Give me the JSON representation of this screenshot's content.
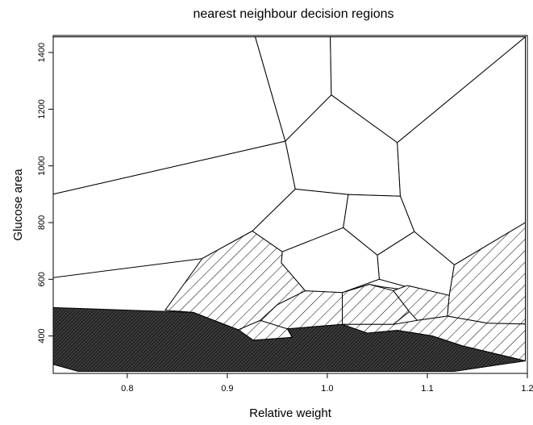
{
  "chart_data": {
    "type": "scatter",
    "title": "nearest neighbour decision regions",
    "xlabel": "Relative weight",
    "ylabel": "Glucose area",
    "xlim": [
      0.726,
      1.2
    ],
    "ylim": [
      268,
      1460
    ],
    "x_ticks": [
      0.8,
      0.9,
      1.0,
      1.1,
      1.2
    ],
    "x_tick_labels": [
      "0.8",
      "0.9",
      "1.0",
      "1.1",
      "1.2"
    ],
    "y_ticks": [
      400,
      600,
      800,
      1000,
      1200,
      1400
    ],
    "y_tick_labels": [
      "400",
      "600",
      "800",
      "1000",
      "1200",
      "1400"
    ],
    "grid": false,
    "legend": "none",
    "classes": [
      {
        "id": "overt",
        "fill": "white"
      },
      {
        "id": "chemical",
        "fill": "hatch"
      },
      {
        "id": "normal",
        "fill": "dark"
      }
    ],
    "region_fill_colors": {
      "white": "#ffffff",
      "hatch_line": "#000000",
      "dark": "#3a3a3a"
    },
    "regions": [
      {
        "class": "overt",
        "points": [
          [
            0.726,
            1455
          ],
          [
            0.928,
            1455
          ],
          [
            0.958,
            1087
          ],
          [
            0.726,
            900
          ]
        ]
      },
      {
        "class": "overt",
        "points": [
          [
            0.928,
            1455
          ],
          [
            1.003,
            1455
          ],
          [
            1.004,
            1250
          ],
          [
            0.958,
            1087
          ]
        ]
      },
      {
        "class": "overt",
        "points": [
          [
            1.003,
            1455
          ],
          [
            1.198,
            1455
          ],
          [
            1.07,
            1082
          ],
          [
            1.004,
            1250
          ]
        ]
      },
      {
        "class": "overt",
        "points": [
          [
            0.958,
            1087
          ],
          [
            1.004,
            1250
          ],
          [
            1.07,
            1082
          ],
          [
            1.073,
            893
          ],
          [
            1.021,
            899
          ],
          [
            0.968,
            918
          ]
        ]
      },
      {
        "class": "overt",
        "points": [
          [
            0.726,
            900
          ],
          [
            0.958,
            1087
          ],
          [
            0.968,
            918
          ],
          [
            0.925,
            770
          ],
          [
            0.875,
            673
          ],
          [
            0.726,
            606
          ]
        ]
      },
      {
        "class": "overt",
        "points": [
          [
            1.07,
            1082
          ],
          [
            1.198,
            1455
          ],
          [
            1.198,
            800
          ],
          [
            1.127,
            651
          ],
          [
            1.087,
            768
          ],
          [
            1.073,
            893
          ]
        ]
      },
      {
        "class": "overt",
        "points": [
          [
            0.968,
            918
          ],
          [
            1.021,
            899
          ],
          [
            1.016,
            782
          ],
          [
            0.955,
            697
          ],
          [
            0.925,
            770
          ]
        ]
      },
      {
        "class": "overt",
        "points": [
          [
            1.021,
            899
          ],
          [
            1.073,
            893
          ],
          [
            1.087,
            768
          ],
          [
            1.05,
            685
          ],
          [
            1.016,
            782
          ]
        ]
      },
      {
        "class": "overt",
        "points": [
          [
            1.087,
            768
          ],
          [
            1.127,
            651
          ],
          [
            1.122,
            543
          ],
          [
            1.1,
            553
          ],
          [
            1.052,
            600
          ],
          [
            1.05,
            685
          ]
        ]
      },
      {
        "class": "overt",
        "points": [
          [
            0.955,
            697
          ],
          [
            1.016,
            782
          ],
          [
            1.05,
            685
          ],
          [
            1.052,
            600
          ],
          [
            1.015,
            553
          ],
          [
            0.978,
            559
          ],
          [
            0.954,
            658
          ]
        ]
      },
      {
        "class": "overt",
        "points": [
          [
            1.052,
            600
          ],
          [
            1.1,
            553
          ],
          [
            1.055,
            573
          ],
          [
            1.042,
            582
          ],
          [
            1.015,
            553
          ]
        ]
      },
      {
        "class": "chemical",
        "points": [
          [
            0.875,
            673
          ],
          [
            0.925,
            770
          ],
          [
            0.955,
            697
          ],
          [
            0.954,
            658
          ],
          [
            0.978,
            559
          ],
          [
            0.95,
            510
          ],
          [
            0.933,
            455
          ],
          [
            0.911,
            422
          ],
          [
            0.866,
            483
          ],
          [
            0.838,
            491
          ]
        ]
      },
      {
        "class": "chemical",
        "points": [
          [
            0.978,
            559
          ],
          [
            1.015,
            553
          ],
          [
            1.015,
            441
          ],
          [
            0.96,
            425
          ],
          [
            0.933,
            455
          ],
          [
            0.95,
            510
          ]
        ]
      },
      {
        "class": "chemical",
        "points": [
          [
            1.015,
            553
          ],
          [
            1.042,
            582
          ],
          [
            1.066,
            560
          ],
          [
            1.082,
            486
          ],
          [
            1.066,
            441
          ],
          [
            1.015,
            441
          ]
        ]
      },
      {
        "class": "chemical",
        "points": [
          [
            1.066,
            560
          ],
          [
            1.08,
            578
          ],
          [
            1.122,
            543
          ],
          [
            1.12,
            470
          ],
          [
            1.09,
            455
          ],
          [
            1.082,
            486
          ]
        ]
      },
      {
        "class": "chemical",
        "points": [
          [
            1.127,
            651
          ],
          [
            1.198,
            800
          ],
          [
            1.198,
            442
          ],
          [
            1.16,
            445
          ],
          [
            1.12,
            470
          ],
          [
            1.122,
            543
          ]
        ]
      },
      {
        "class": "chemical",
        "points": [
          [
            0.911,
            422
          ],
          [
            0.933,
            455
          ],
          [
            0.96,
            425
          ],
          [
            0.965,
            395
          ],
          [
            0.926,
            385
          ]
        ]
      },
      {
        "class": "chemical",
        "points": [
          [
            1.015,
            441
          ],
          [
            1.066,
            441
          ],
          [
            1.09,
            455
          ],
          [
            1.12,
            470
          ],
          [
            1.16,
            445
          ],
          [
            1.198,
            442
          ],
          [
            1.198,
            312
          ],
          [
            1.135,
            365
          ],
          [
            1.105,
            400
          ],
          [
            1.07,
            420
          ],
          [
            1.04,
            410
          ]
        ]
      },
      {
        "class": "normal",
        "points": [
          [
            0.726,
            500
          ],
          [
            0.866,
            483
          ],
          [
            0.911,
            422
          ],
          [
            0.926,
            385
          ],
          [
            0.965,
            395
          ],
          [
            0.96,
            425
          ],
          [
            1.015,
            441
          ],
          [
            1.04,
            410
          ],
          [
            1.07,
            420
          ],
          [
            1.105,
            400
          ],
          [
            1.135,
            365
          ],
          [
            1.198,
            312
          ],
          [
            1.127,
            275
          ],
          [
            0.751,
            275
          ],
          [
            0.726,
            300
          ]
        ]
      }
    ]
  }
}
